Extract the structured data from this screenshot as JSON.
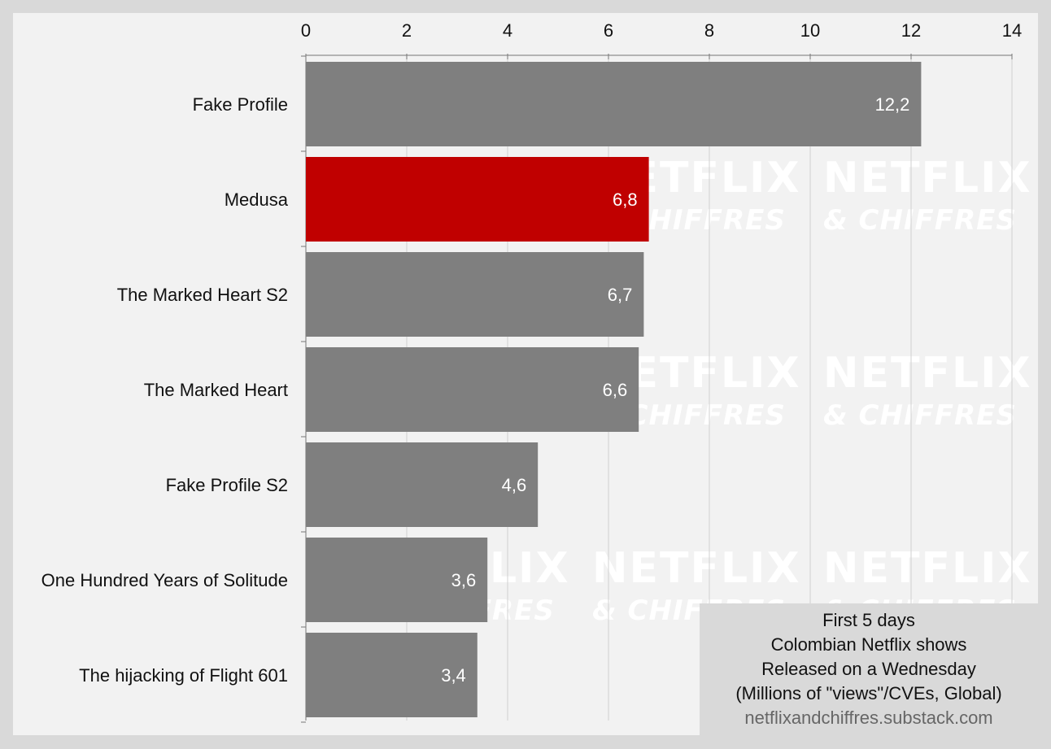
{
  "colors": {
    "bar_default": "#7f7f7f",
    "bar_highlight": "#c00000",
    "panel_background": "#f2f2f2",
    "page_background": "#d9d9d9",
    "watermark": "#ffffff"
  },
  "watermark": {
    "line1": "NETFLIX",
    "line2": "& CHIFFRES"
  },
  "legend": {
    "lines": [
      "First 5 days",
      "Colombian Netflix shows",
      "Released on a Wednesday",
      "(Millions of \"views\"/CVEs, Global)"
    ],
    "source": "netflixandchiffres.substack.com"
  },
  "chart_data": {
    "type": "bar",
    "orientation": "horizontal",
    "categories": [
      "Fake Profile",
      "Medusa",
      "The Marked Heart S2",
      "The Marked Heart",
      "Fake Profile S2",
      "One Hundred Years of Solitude",
      "The hijacking of Flight 601"
    ],
    "values": [
      12.2,
      6.8,
      6.7,
      6.6,
      4.6,
      3.6,
      3.4
    ],
    "value_labels": [
      "12,2",
      "6,8",
      "6,7",
      "6,6",
      "4,6",
      "3,6",
      "3,4"
    ],
    "highlight": "Medusa",
    "xlim": [
      0,
      14
    ],
    "xticks": [
      0,
      2,
      4,
      6,
      8,
      10,
      12,
      14
    ],
    "xaxis_position": "top",
    "grid": true,
    "title": "",
    "xlabel": "",
    "ylabel": ""
  }
}
